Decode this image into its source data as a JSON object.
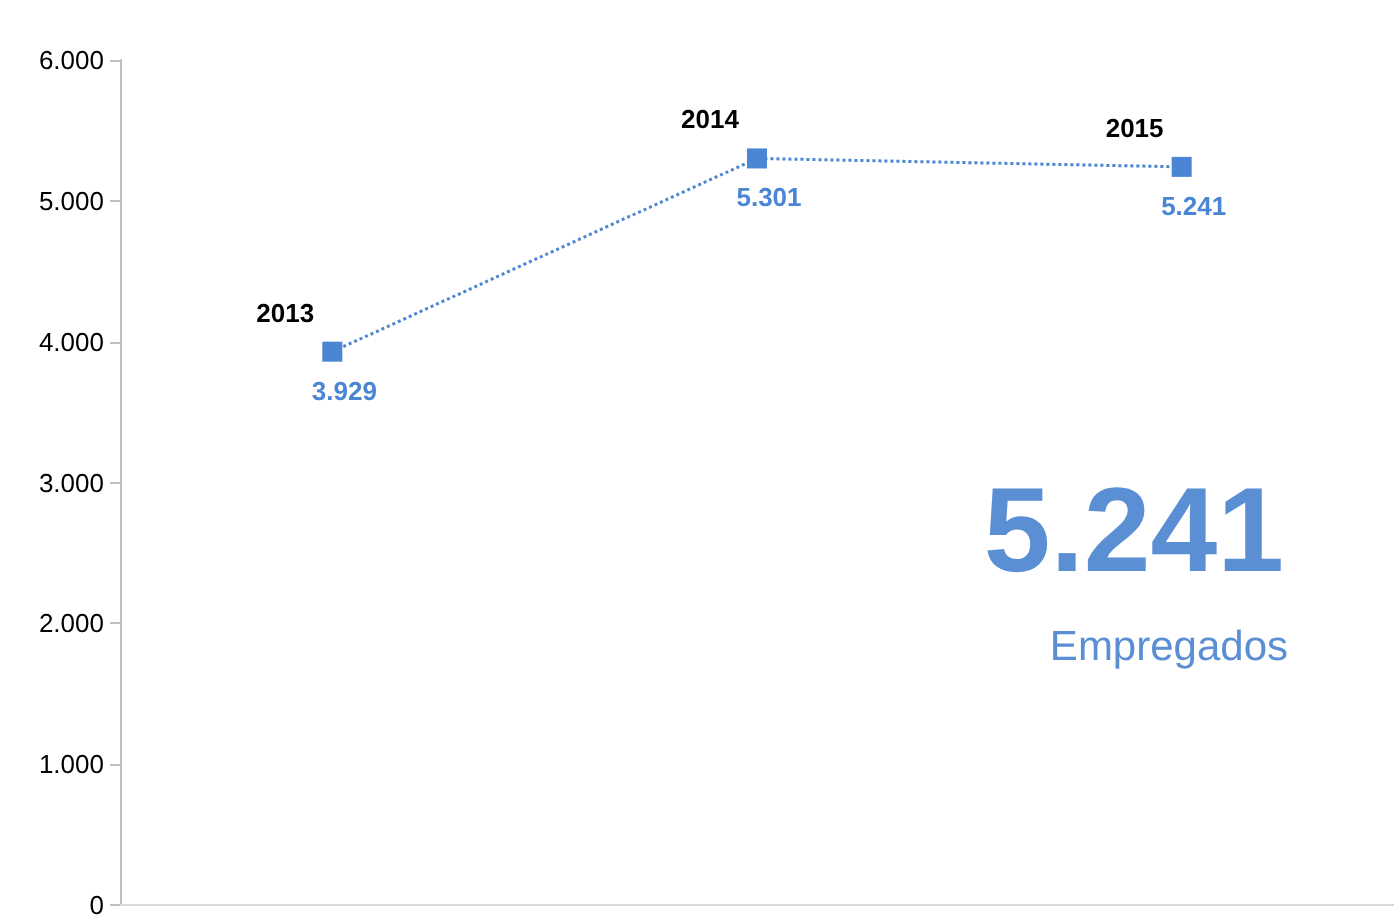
{
  "chart_data": {
    "type": "line",
    "categories": [
      "2013",
      "2014",
      "2015"
    ],
    "series": [
      {
        "color": "#4a86d4",
        "values": [
          3929,
          5301,
          5241
        ],
        "value_labels": [
          "3.929",
          "5.301",
          "5.241"
        ]
      }
    ],
    "ylim": [
      0,
      6000
    ],
    "yticks": [
      {
        "value": 0,
        "label": "0"
      },
      {
        "value": 1000,
        "label": "1.000"
      },
      {
        "value": 2000,
        "label": "2.000"
      },
      {
        "value": 3000,
        "label": "3.000"
      },
      {
        "value": 4000,
        "label": "4.000"
      },
      {
        "value": 5000,
        "label": "5.000"
      },
      {
        "value": 6000,
        "label": "6.000"
      }
    ],
    "marker": "square",
    "line_style": "dotted",
    "grid": false,
    "annotations": [
      "5.241",
      "Empregados"
    ]
  }
}
